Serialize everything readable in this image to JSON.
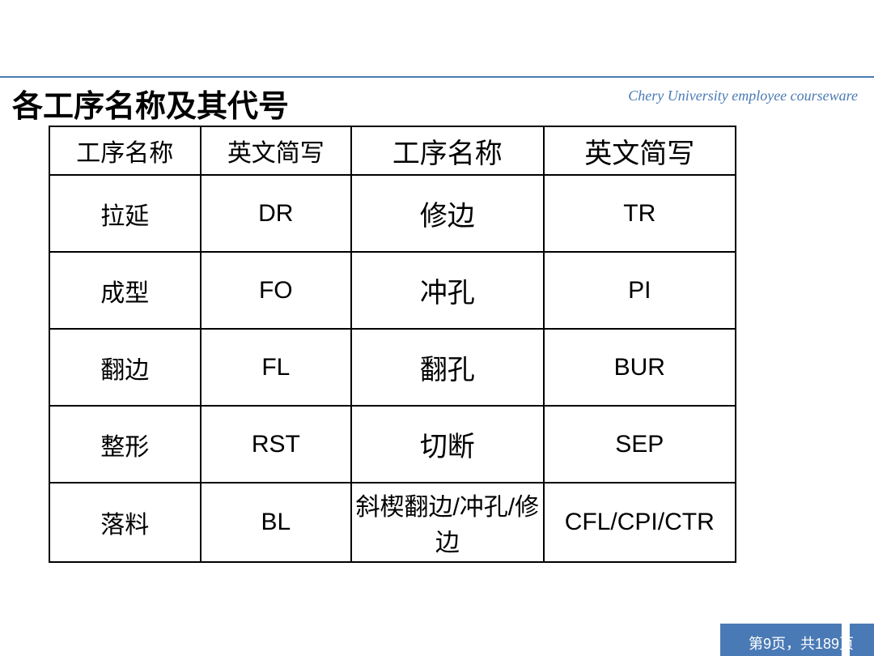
{
  "header": {
    "watermark": "Chery University employee courseware",
    "title": "各工序名称及其代号",
    "divider_color": "#4a7ab5"
  },
  "table": {
    "columns": [
      {
        "label": "工序名称",
        "class": "col1"
      },
      {
        "label": "英文简写",
        "class": "col2"
      },
      {
        "label": "工序名称",
        "class": "col3 header-large"
      },
      {
        "label": "英文简写",
        "class": "col4 header-large"
      }
    ],
    "rows": [
      [
        "拉延",
        "DR",
        "修边",
        "TR"
      ],
      [
        "成型",
        "FO",
        "冲孔",
        "PI"
      ],
      [
        "翻边",
        "FL",
        "翻孔",
        "BUR"
      ],
      [
        "整形",
        "RST",
        "切断",
        "SEP"
      ],
      [
        "落料",
        "BL",
        "斜楔翻边/冲孔/修边",
        "CFL/CPI/CTR"
      ]
    ],
    "border_color": "#000000",
    "cell_fontsize": 30,
    "header_fontsize_small": 30,
    "header_fontsize_large": 34
  },
  "footer": {
    "page_text": "第9页，共189页",
    "bar_color": "#4a7ab5"
  }
}
